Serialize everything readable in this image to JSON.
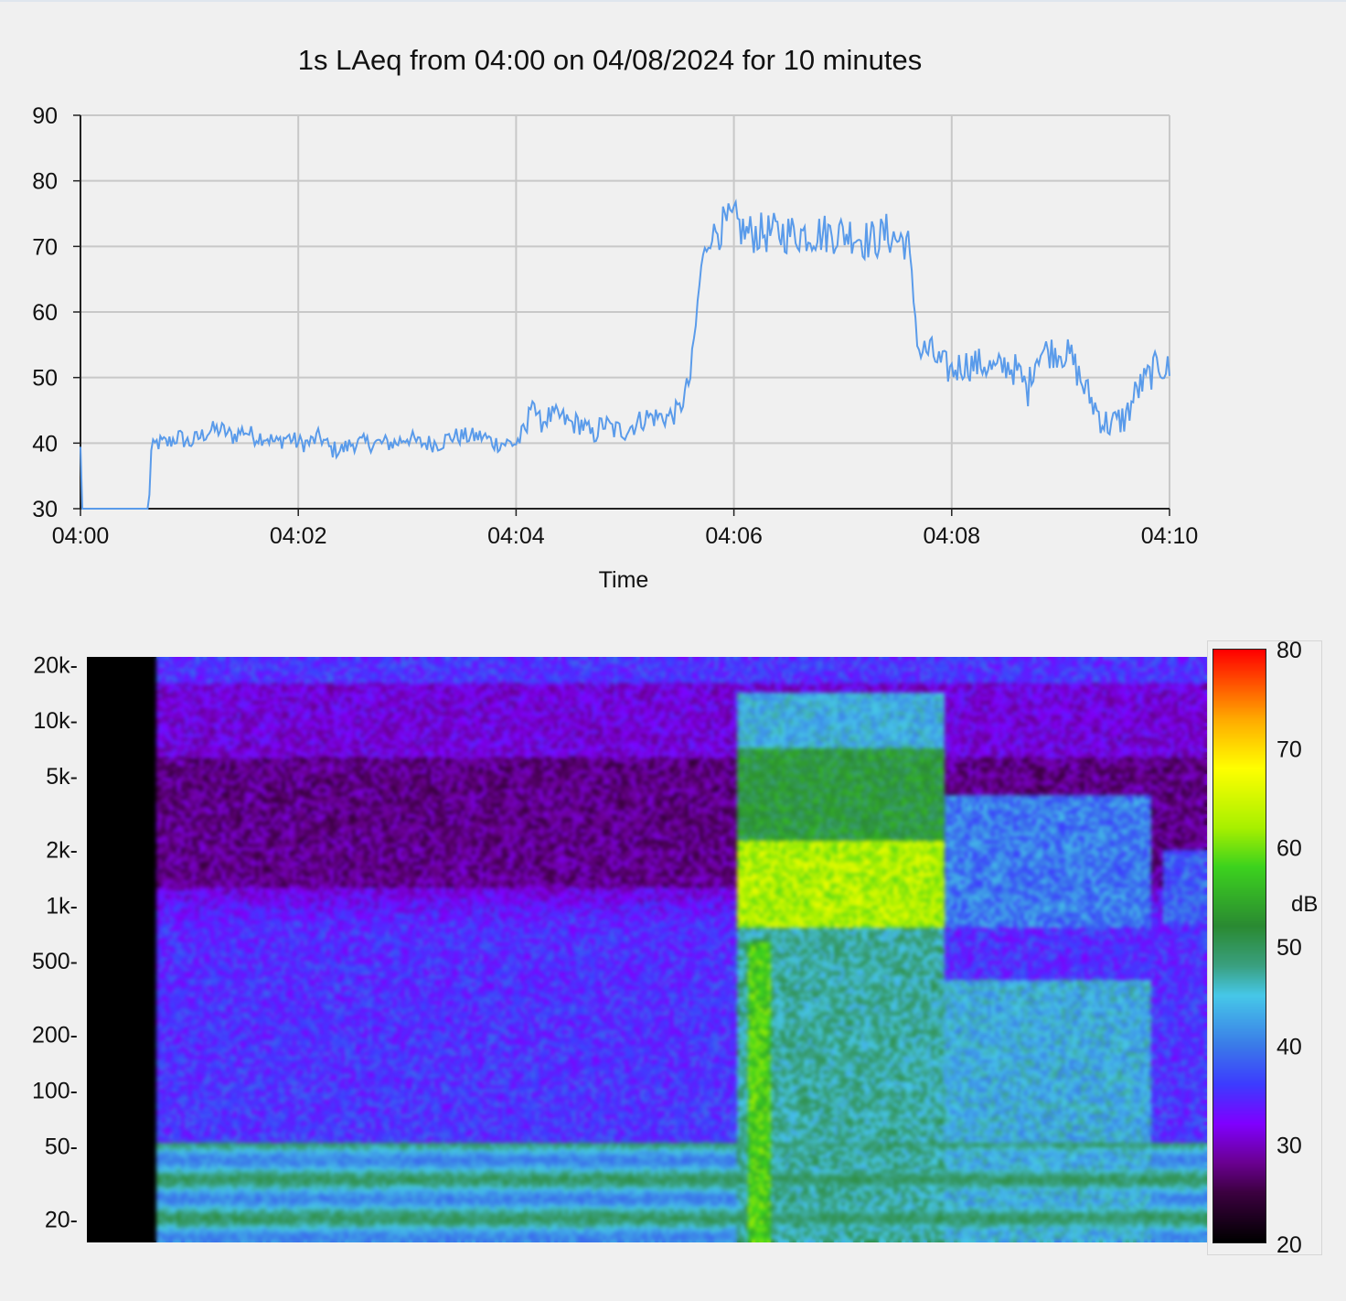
{
  "chart_data": [
    {
      "type": "line",
      "title": "1s LAeq from 04:00 on 04/08/2024 for 10 minutes",
      "xlabel": "Time",
      "ylabel": "",
      "ylim": [
        30,
        90
      ],
      "yticks": [
        "30",
        "40",
        "50",
        "60",
        "70",
        "80",
        "90"
      ],
      "xticks": [
        "04:00",
        "04:02",
        "04:04",
        "04:06",
        "04:08",
        "04:10"
      ],
      "xlim_minutes": [
        0,
        10
      ],
      "grid": true,
      "line_color": "#5a9bea",
      "series": [
        {
          "x_minutes": [
            0.0,
            0.01,
            0.02,
            0.63,
            0.64,
            0.66,
            0.7,
            0.8,
            0.9,
            1.0,
            1.1,
            1.2,
            1.3,
            1.4,
            1.5,
            1.6,
            1.7,
            1.8,
            1.9,
            2.0,
            2.1,
            2.2,
            2.3,
            2.4,
            2.5,
            2.6,
            2.7,
            2.8,
            2.9,
            3.0,
            3.1,
            3.2,
            3.3,
            3.4,
            3.5,
            3.6,
            3.7,
            3.8,
            3.9,
            4.0,
            4.1,
            4.15,
            4.2,
            4.3,
            4.4,
            4.5,
            4.6,
            4.7,
            4.8,
            4.9,
            5.0,
            5.1,
            5.2,
            5.3,
            5.4,
            5.5,
            5.6,
            5.65,
            5.7,
            5.75,
            5.8,
            5.9,
            6.0,
            6.1,
            6.2,
            6.3,
            6.4,
            6.5,
            6.6,
            6.7,
            6.8,
            6.9,
            7.0,
            7.1,
            7.2,
            7.3,
            7.4,
            7.5,
            7.6,
            7.65,
            7.7,
            7.8,
            7.9,
            8.0,
            8.1,
            8.2,
            8.3,
            8.4,
            8.5,
            8.6,
            8.7,
            8.75,
            8.8,
            8.9,
            9.0,
            9.1,
            9.2,
            9.3,
            9.4,
            9.5,
            9.6,
            9.7,
            9.8,
            9.9,
            10.0
          ],
          "values": [
            39,
            30,
            30,
            30,
            38,
            39,
            40,
            40,
            41,
            40,
            41,
            42,
            42,
            41,
            42,
            41,
            41,
            40,
            41,
            40,
            40,
            41,
            39,
            39,
            40,
            40,
            40,
            40,
            40,
            41,
            40,
            40,
            40,
            41,
            41,
            41,
            41,
            40,
            40,
            40,
            42,
            48,
            43,
            44,
            44,
            43,
            43,
            41,
            43,
            42,
            42,
            43,
            44,
            44,
            44,
            45,
            50,
            58,
            67,
            70,
            72,
            73,
            74,
            72,
            72,
            72,
            72,
            72,
            72,
            72,
            72,
            72,
            72,
            72,
            71,
            71,
            72,
            71,
            71,
            62,
            54,
            54,
            52,
            51,
            52,
            52,
            52,
            51,
            52,
            51,
            48,
            52,
            54,
            54,
            54,
            53,
            49,
            46,
            43,
            43,
            44,
            48,
            50,
            52,
            51
          ]
        }
      ]
    },
    {
      "type": "heatmap",
      "title": "",
      "xlabel": "",
      "ylabel": "",
      "yticks": [
        "20k-",
        "10k-",
        "5k-",
        "2k-",
        "1k-",
        "500-",
        "200-",
        "100-",
        "50-",
        "20-"
      ],
      "ytick_hz": [
        20000,
        10000,
        5000,
        2000,
        1000,
        500,
        200,
        100,
        50,
        20
      ],
      "freq_range_hz": [
        15,
        22000
      ],
      "xlim_minutes": [
        0,
        10
      ],
      "colorbar": {
        "label": "dB",
        "ticks": [
          "80",
          "70",
          "60",
          "50",
          "40",
          "30",
          "20"
        ],
        "range": [
          20,
          80
        ],
        "stops": [
          {
            "db": 20,
            "color": "#000000"
          },
          {
            "db": 25,
            "color": "#3c0040"
          },
          {
            "db": 28,
            "color": "#6a0090"
          },
          {
            "db": 32,
            "color": "#8000ff"
          },
          {
            "db": 36,
            "color": "#3c3cff"
          },
          {
            "db": 40,
            "color": "#3a7ce8"
          },
          {
            "db": 45,
            "color": "#46c8e8"
          },
          {
            "db": 48,
            "color": "#3aa080"
          },
          {
            "db": 52,
            "color": "#2a8a32"
          },
          {
            "db": 58,
            "color": "#3cd21e"
          },
          {
            "db": 62,
            "color": "#a8f000"
          },
          {
            "db": 68,
            "color": "#ffff00"
          },
          {
            "db": 73,
            "color": "#ffaa00"
          },
          {
            "db": 80,
            "color": "#ff0000"
          }
        ]
      }
    }
  ]
}
